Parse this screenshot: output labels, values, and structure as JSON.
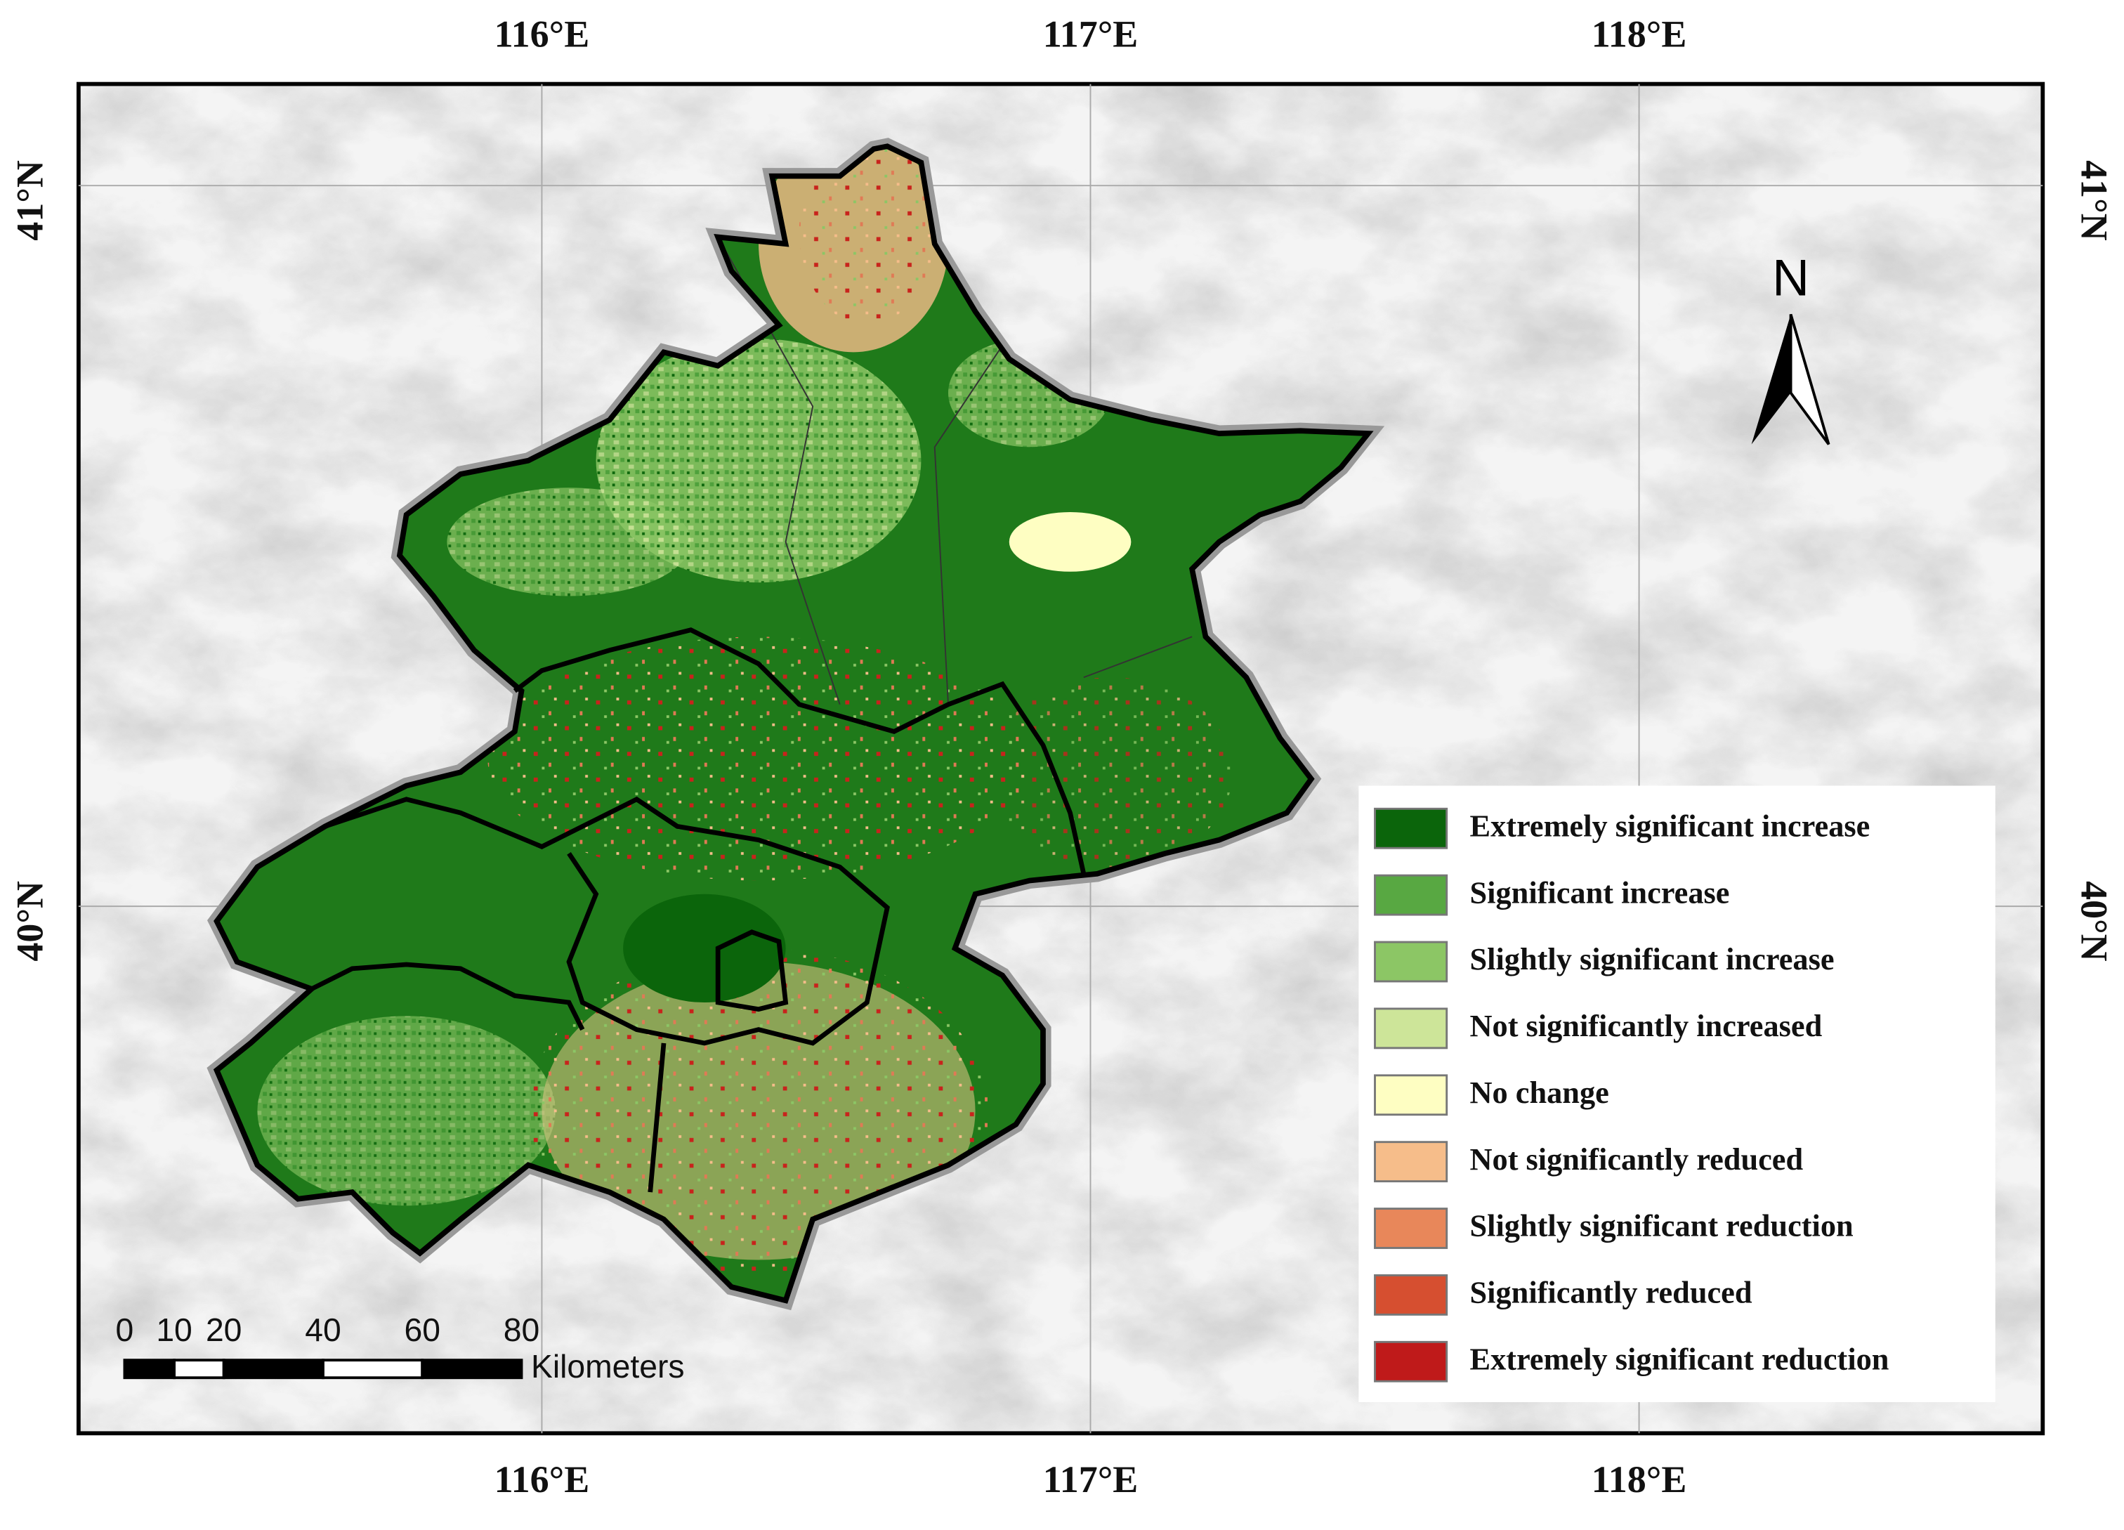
{
  "map": {
    "lon_labels": [
      "116°E",
      "117°E",
      "118°E"
    ],
    "lat_labels": [
      "41°N",
      "40°N"
    ],
    "north_label": "N",
    "legend": [
      {
        "label": "Extremely significant increase",
        "color": "#0b650b"
      },
      {
        "label": "Significant increase",
        "color": "#58a842"
      },
      {
        "label": "Slightly significant increase",
        "color": "#8cc665"
      },
      {
        "label": "Not significantly increased",
        "color": "#cde599"
      },
      {
        "label": "No change",
        "color": "#fefec2"
      },
      {
        "label": "Not significantly reduced",
        "color": "#f6bd8a"
      },
      {
        "label": "Slightly significant reduction",
        "color": "#e8875a"
      },
      {
        "label": "Significantly reduced",
        "color": "#d64f30"
      },
      {
        "label": "Extremely significant reduction",
        "color": "#bf1a1a"
      }
    ],
    "scale_bar": {
      "ticks": [
        0,
        10,
        20,
        40,
        60,
        80
      ],
      "unit": "Kilometers"
    }
  }
}
